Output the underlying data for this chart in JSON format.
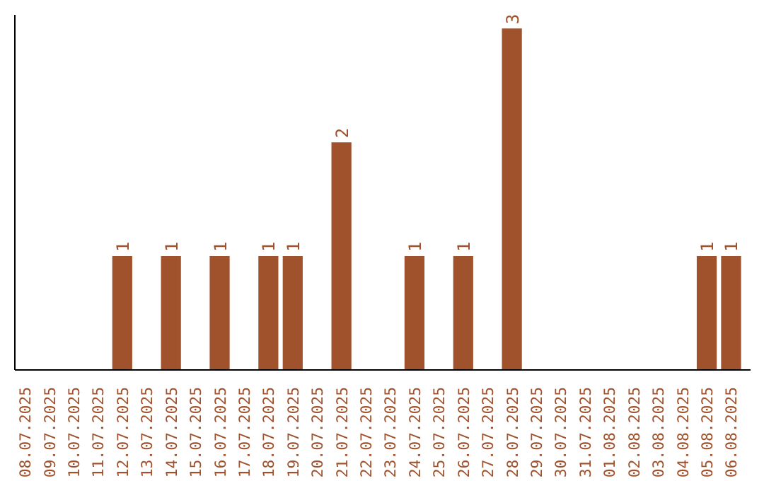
{
  "chart_data": {
    "type": "bar",
    "categories": [
      "08.07.2025",
      "09.07.2025",
      "10.07.2025",
      "11.07.2025",
      "12.07.2025",
      "13.07.2025",
      "14.07.2025",
      "15.07.2025",
      "16.07.2025",
      "17.07.2025",
      "18.07.2025",
      "19.07.2025",
      "20.07.2025",
      "21.07.2025",
      "22.07.2025",
      "23.07.2025",
      "24.07.2025",
      "25.07.2025",
      "26.07.2025",
      "27.07.2025",
      "28.07.2025",
      "29.07.2025",
      "30.07.2025",
      "31.07.2025",
      "01.08.2025",
      "02.08.2025",
      "03.08.2025",
      "04.08.2025",
      "05.08.2025",
      "06.08.2025"
    ],
    "values": [
      0,
      0,
      0,
      0,
      1,
      0,
      1,
      0,
      1,
      0,
      1,
      1,
      0,
      2,
      0,
      0,
      1,
      0,
      1,
      0,
      3,
      0,
      0,
      0,
      0,
      0,
      0,
      0,
      1,
      1
    ],
    "value_labels": [
      null,
      null,
      null,
      null,
      "1",
      null,
      "1",
      null,
      "1",
      null,
      "1",
      "1",
      null,
      "2",
      null,
      null,
      "1",
      null,
      "1",
      null,
      "3",
      null,
      null,
      null,
      null,
      null,
      null,
      null,
      "1",
      "1"
    ],
    "color": "#a0522d",
    "tick_labels": "x",
    "grid": false
  }
}
